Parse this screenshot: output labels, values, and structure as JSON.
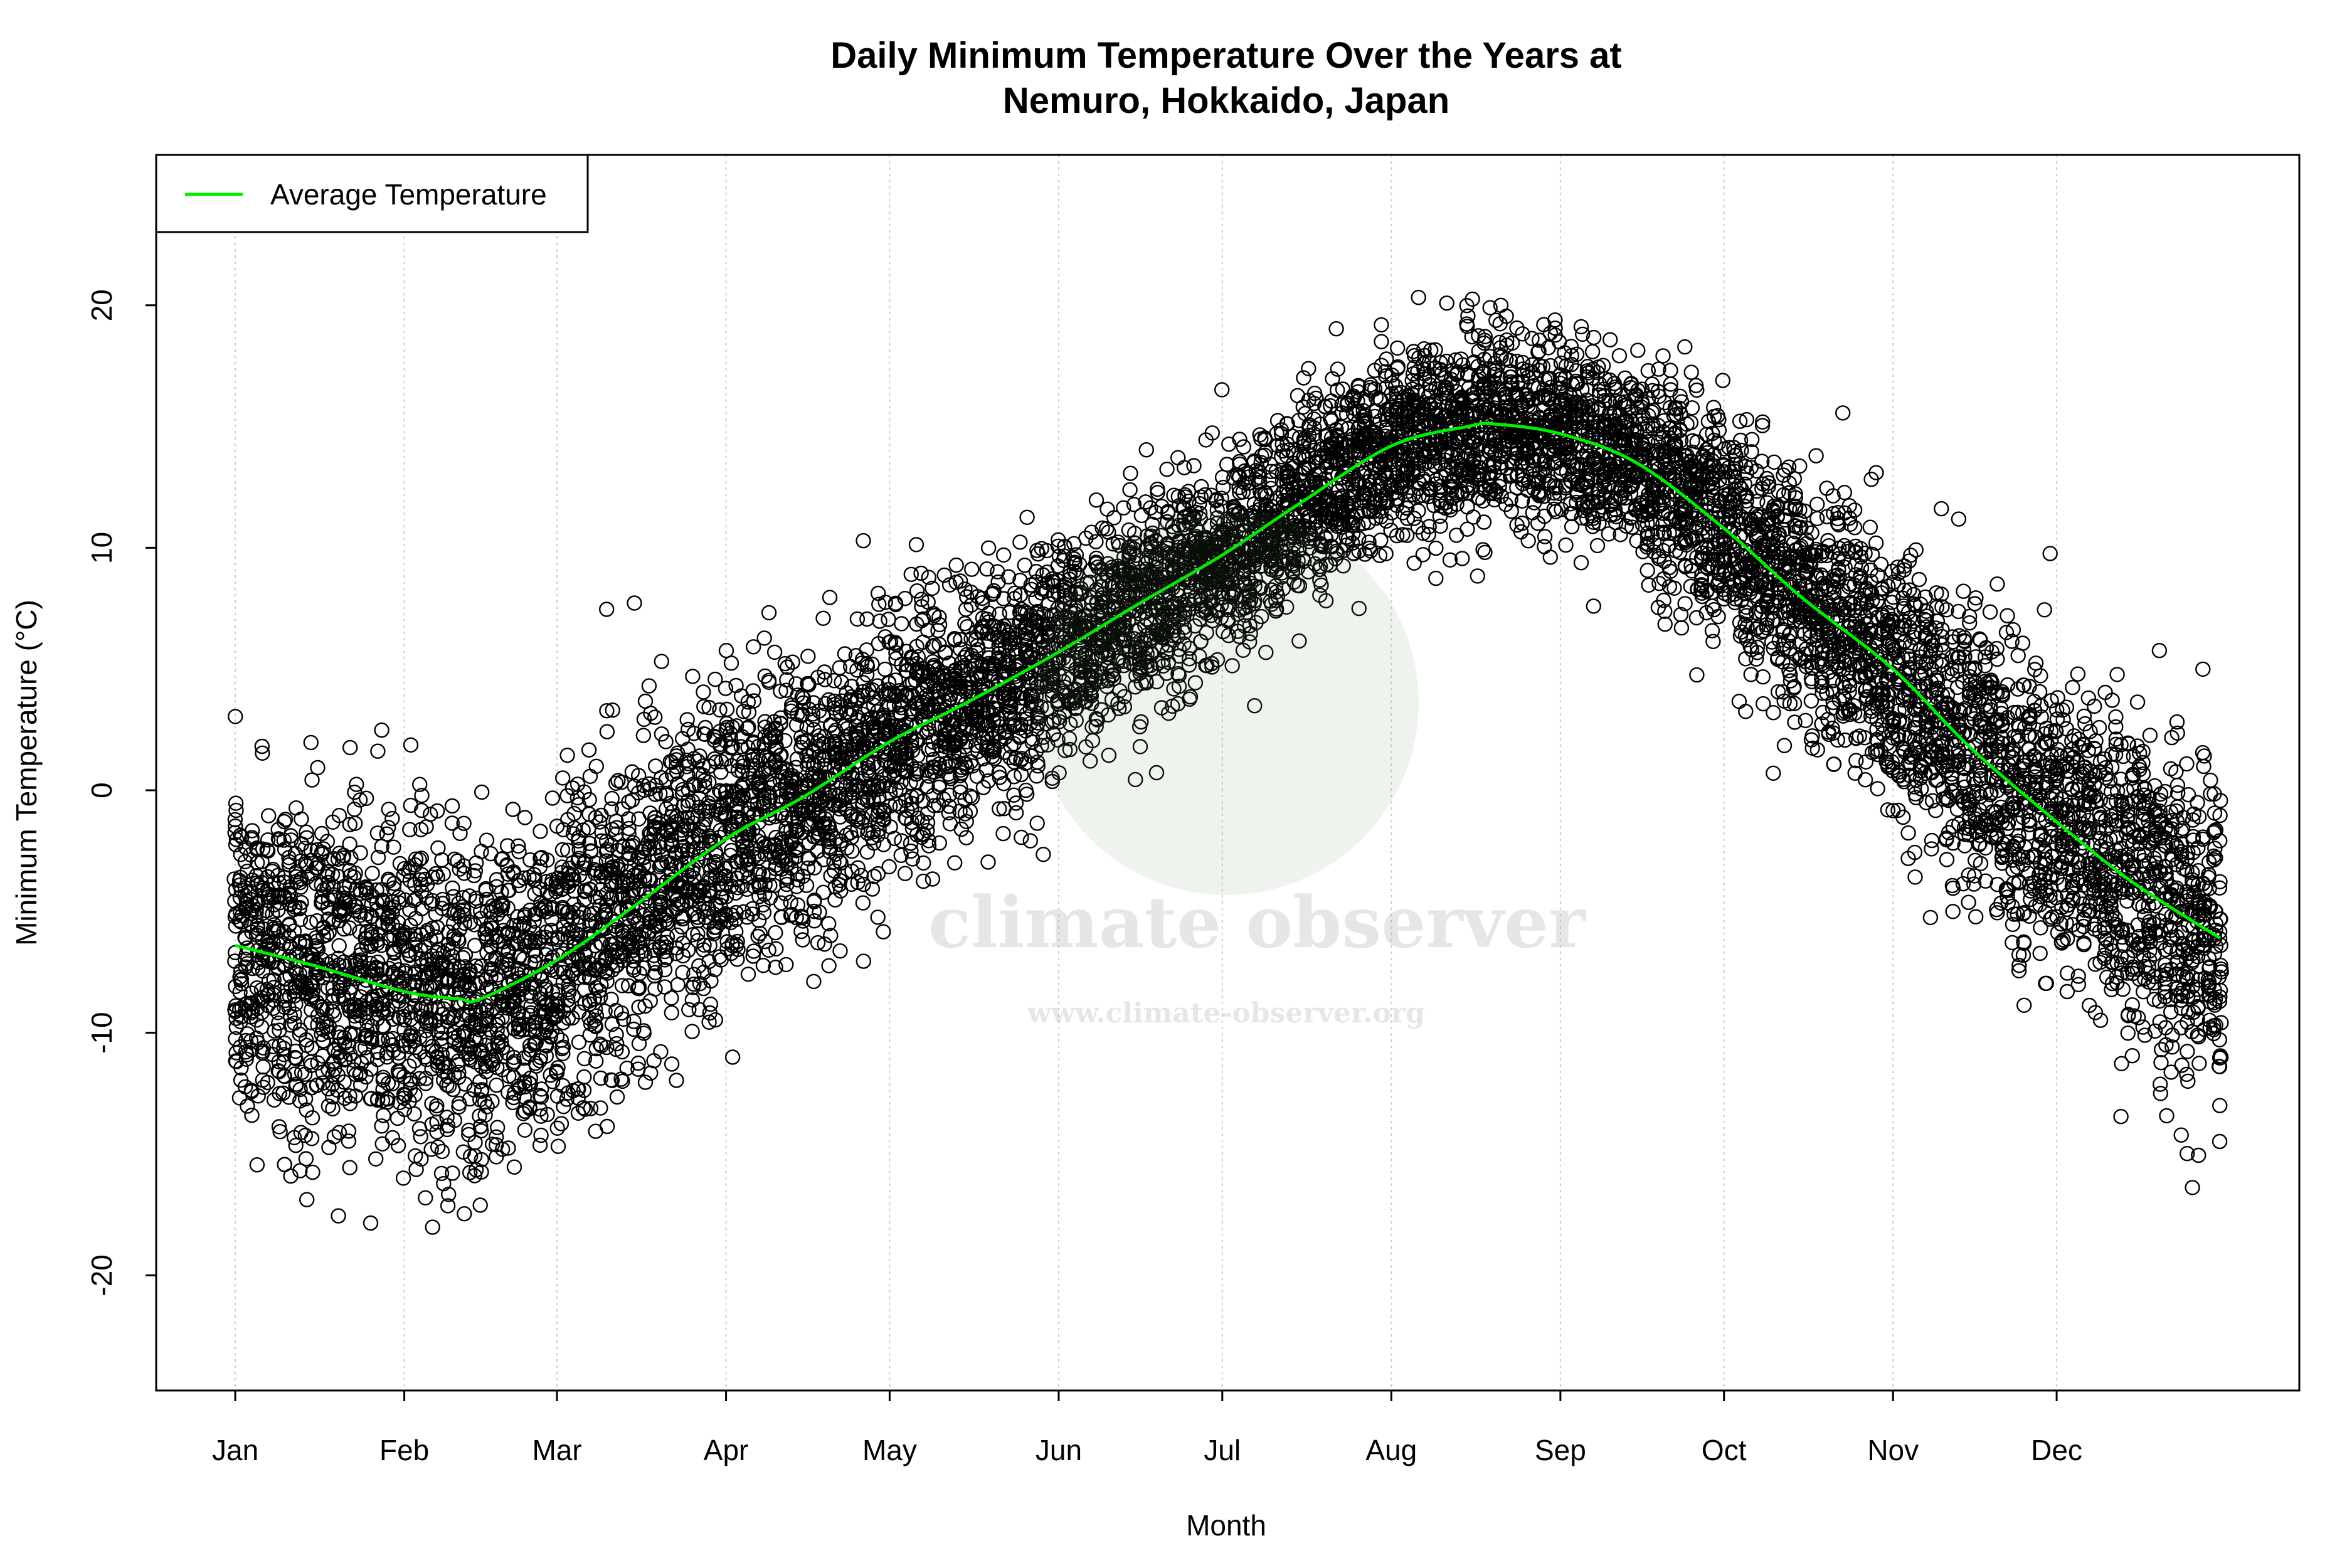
{
  "chart_data": {
    "type": "scatter",
    "title": [
      "Daily Minimum Temperature Over the Years at",
      "Nemuro, Hokkaido, Japan"
    ],
    "xlabel": "Month",
    "ylabel": "Minimum Temperature (°C)",
    "x_unit": "day of year",
    "xlim": [
      -13.5,
      379.5
    ],
    "ylim": [
      -24.75,
      26.2
    ],
    "x_ticks": [
      {
        "day": 1,
        "label": "Jan"
      },
      {
        "day": 32,
        "label": "Feb"
      },
      {
        "day": 60,
        "label": "Mar"
      },
      {
        "day": 91,
        "label": "Apr"
      },
      {
        "day": 121,
        "label": "May"
      },
      {
        "day": 152,
        "label": "Jun"
      },
      {
        "day": 182,
        "label": "Jul"
      },
      {
        "day": 213,
        "label": "Aug"
      },
      {
        "day": 244,
        "label": "Sep"
      },
      {
        "day": 274,
        "label": "Oct"
      },
      {
        "day": 305,
        "label": "Nov"
      },
      {
        "day": 335,
        "label": "Dec"
      }
    ],
    "y_ticks": [
      -20,
      -10,
      0,
      10,
      20
    ],
    "grid": "vertical dotted lines at month starts",
    "legend": {
      "position": "top-left",
      "entries": [
        {
          "label": "Average Temperature",
          "color": "#00ee00"
        }
      ]
    },
    "points": {
      "marker": "open circle",
      "color": "#000000",
      "day_range": [
        1,
        365
      ],
      "value_range": [
        -23,
        24.3
      ]
    },
    "series": [
      {
        "name": "Average Temperature",
        "type": "line",
        "color": "#00ee00",
        "x": [
          1,
          15,
          32,
          42,
          46,
          60,
          74,
          91,
          105,
          121,
          135,
          152,
          166,
          182,
          196,
          213,
          227,
          232,
          244,
          258,
          274,
          288,
          305,
          319,
          335,
          349,
          365
        ],
        "y": [
          -6.4,
          -7.2,
          -8.3,
          -8.6,
          -8.6,
          -7.0,
          -4.8,
          -2.0,
          -0.3,
          2.0,
          3.6,
          5.7,
          7.6,
          9.7,
          11.8,
          14.2,
          15.0,
          15.1,
          14.7,
          13.5,
          10.8,
          8.0,
          5.0,
          1.8,
          -1.3,
          -3.8,
          -6.1
        ]
      }
    ]
  },
  "watermark": {
    "name": "climate observer",
    "url": "www.climate-observer.org",
    "tint": "#5a8a5a"
  }
}
